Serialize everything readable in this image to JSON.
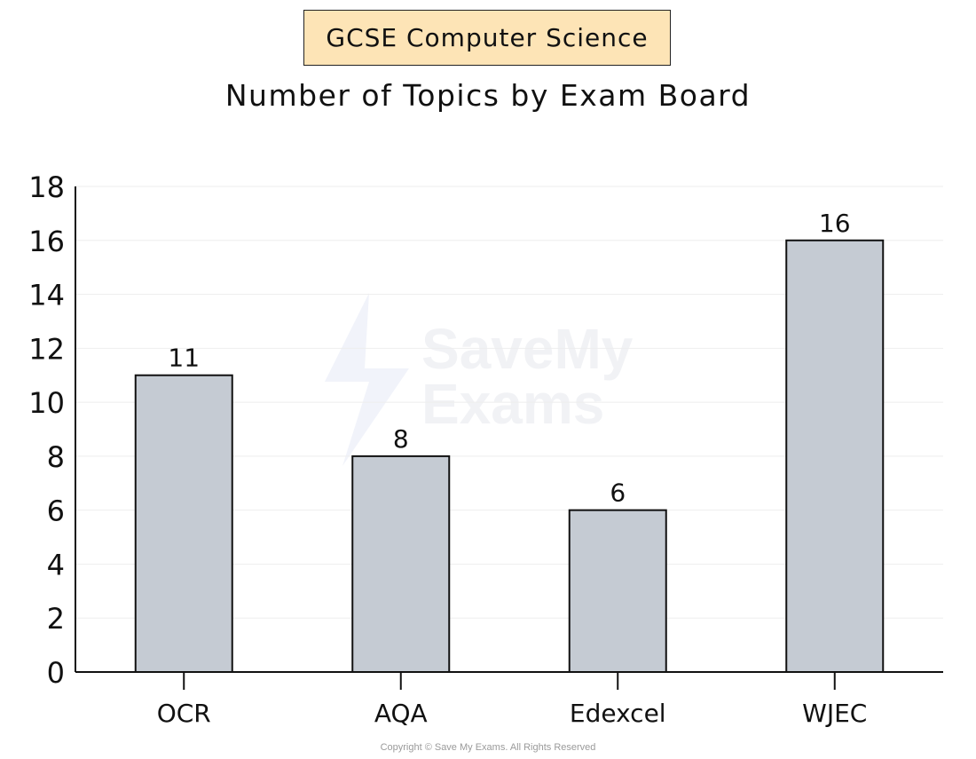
{
  "header": {
    "badge": "GCSE Computer Science",
    "title": "Number of Topics by Exam Board"
  },
  "footer": {
    "copyright": "Copyright © Save My Exams. All Rights Reserved"
  },
  "watermark": {
    "brand": "SaveMy",
    "brand_line2": "Exams"
  },
  "colors": {
    "bar_fill": "#c5cbd3",
    "bar_stroke": "#111111",
    "badge_fill": "#fde4b6",
    "grid": "#eeeeee"
  },
  "chart_data": {
    "type": "bar",
    "title": "Number of Topics by Exam Board",
    "xlabel": "",
    "ylabel": "",
    "categories": [
      "OCR",
      "AQA",
      "Edexcel",
      "WJEC"
    ],
    "values": [
      11,
      8,
      6,
      16
    ],
    "data_labels": [
      "11",
      "8",
      "6",
      "16"
    ],
    "ylim": [
      0,
      18
    ],
    "yticks": [
      0,
      2,
      4,
      6,
      8,
      10,
      12,
      14,
      16,
      18
    ],
    "grid": true,
    "legend": "none"
  }
}
